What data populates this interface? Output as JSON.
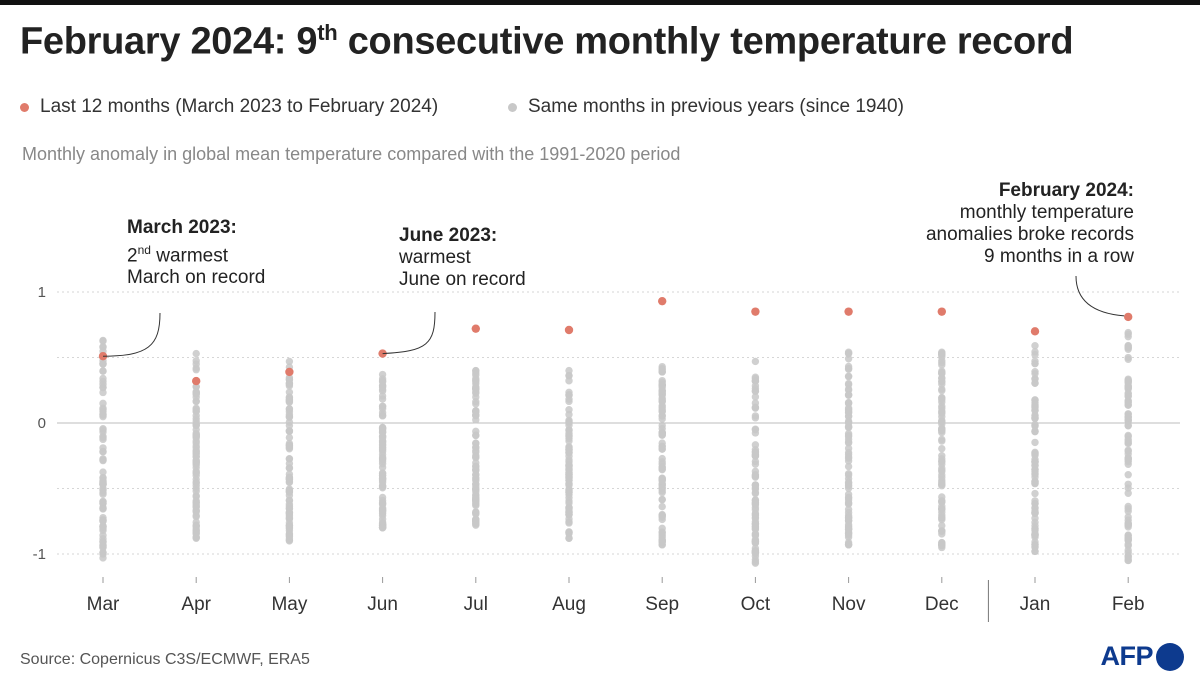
{
  "title": {
    "main": "February 2024: 9",
    "sup": "th",
    "rest": " consecutive monthly temperature record"
  },
  "legend": [
    {
      "label": "Last 12 months (March 2023 to February 2024)",
      "color": "#e07b6b"
    },
    {
      "label": "Same months in previous years (since 1940)",
      "color": "#c8c8c8"
    }
  ],
  "subtitle": "Monthly anomaly in global mean temperature compared with the 1991-2020 period",
  "source": "Source: Copernicus C3S/ECMWF, ERA5",
  "logo": {
    "text": "AFP"
  },
  "annotations": [
    {
      "head": "March 2023:",
      "line1_main": "2",
      "line1_sup": "nd",
      "line1_rest": " warmest",
      "line2": "March on record"
    },
    {
      "head": "June 2023:",
      "line1": "warmest",
      "line2": "June on record"
    },
    {
      "head": "February 2024:",
      "line1": "monthly temperature",
      "line2": "anomalies broke records",
      "line3": "9 months in a row"
    }
  ],
  "chart_data": {
    "type": "scatter",
    "categories": [
      "Mar",
      "Apr",
      "May",
      "Jun",
      "Jul",
      "Aug",
      "Sep",
      "Oct",
      "Nov",
      "Dec",
      "Jan",
      "Feb"
    ],
    "y_ticks": [
      "1",
      "0",
      "-1"
    ],
    "ylim": [
      -1.1,
      1.05
    ],
    "grid": true,
    "legend_position": "top-left",
    "highlight_color": "#e07b6b",
    "history_color": "#c8c8c8",
    "series": [
      {
        "name": "Last 12 months (March 2023 to February 2024)",
        "values": [
          0.51,
          0.32,
          0.39,
          0.53,
          0.72,
          0.71,
          0.93,
          0.85,
          0.85,
          0.85,
          0.7,
          0.81
        ]
      },
      {
        "name": "Same months in previous years (since 1940)",
        "ranges": [
          {
            "min": -1.03,
            "max": 0.63
          },
          {
            "min": -0.88,
            "max": 0.53
          },
          {
            "min": -0.9,
            "max": 0.47
          },
          {
            "min": -0.8,
            "max": 0.37
          },
          {
            "min": -0.78,
            "max": 0.4
          },
          {
            "min": -0.88,
            "max": 0.4
          },
          {
            "min": -0.93,
            "max": 0.43
          },
          {
            "min": -1.07,
            "max": 0.47
          },
          {
            "min": -0.93,
            "max": 0.54
          },
          {
            "min": -0.95,
            "max": 0.54
          },
          {
            "min": -0.98,
            "max": 0.59
          },
          {
            "min": -1.05,
            "max": 0.69
          }
        ]
      }
    ]
  }
}
